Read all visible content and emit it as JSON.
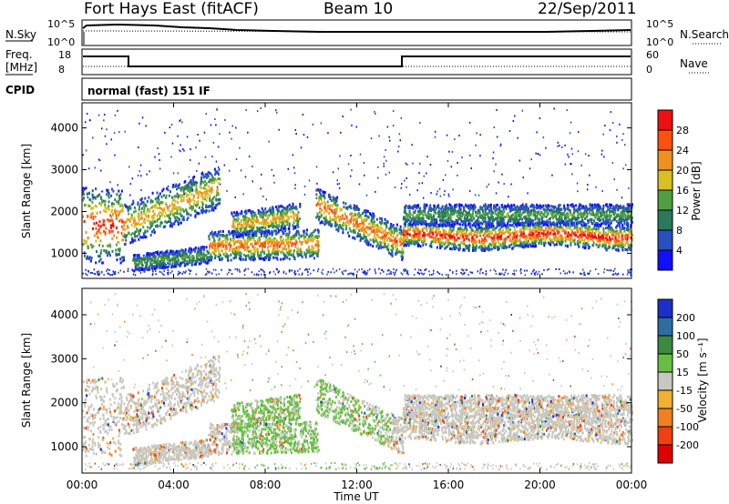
{
  "header": {
    "station": "Fort Hays East (fitACF)",
    "beam": "Beam 10",
    "date": "22/Sep/2011"
  },
  "panels": {
    "nsky": {
      "left_label": "N.Sky",
      "left_ticks": [
        "10^5",
        "10^0"
      ],
      "right_ticks": [
        "10^5",
        "10^0"
      ],
      "right_label": "N.Search"
    },
    "freq": {
      "left_label_line1": "Freq.",
      "left_label_line2": "[MHz]",
      "left_ticks": [
        "18",
        "8"
      ],
      "right_ticks": [
        "60",
        "0"
      ],
      "right_label": "Nave"
    },
    "cpid": {
      "label": "CPID",
      "mode": "normal (fast) 151 IF"
    }
  },
  "chart_data": [
    {
      "type": "heatmap",
      "name": "power",
      "ylabel": "Slant Range [km]",
      "ylim": [
        400,
        4600
      ],
      "yticks": [
        "1000",
        "2000",
        "3000",
        "4000"
      ],
      "colorbar": {
        "label": "Power [dB]",
        "ticks": [
          "4",
          "8",
          "12",
          "16",
          "20",
          "24",
          "28"
        ],
        "colors": [
          "#1010ff",
          "#2850c0",
          "#2a7a5a",
          "#50a040",
          "#d8c020",
          "#f09020",
          "#ff5010",
          "#ee1010"
        ]
      }
    },
    {
      "type": "heatmap",
      "name": "velocity",
      "ylabel": "Slant Range [km]",
      "xlabel": "Time UT",
      "ylim": [
        400,
        4600
      ],
      "yticks": [
        "1000",
        "2000",
        "3000",
        "4000"
      ],
      "xticks": [
        "00:00",
        "04:00",
        "08:00",
        "12:00",
        "16:00",
        "20:00",
        "00:00"
      ],
      "xlim_hours": [
        0,
        24
      ],
      "colorbar": {
        "label": "Velocity [m s⁻¹]",
        "ticks": [
          "200",
          "100",
          "50",
          "15",
          "-15",
          "-50",
          "-100",
          "-200"
        ],
        "colors": [
          "#1a30c8",
          "#2c6ea0",
          "#3a8a40",
          "#66c040",
          "#c8c8c0",
          "#f0b030",
          "#f08020",
          "#f04010",
          "#e00000"
        ]
      }
    }
  ]
}
